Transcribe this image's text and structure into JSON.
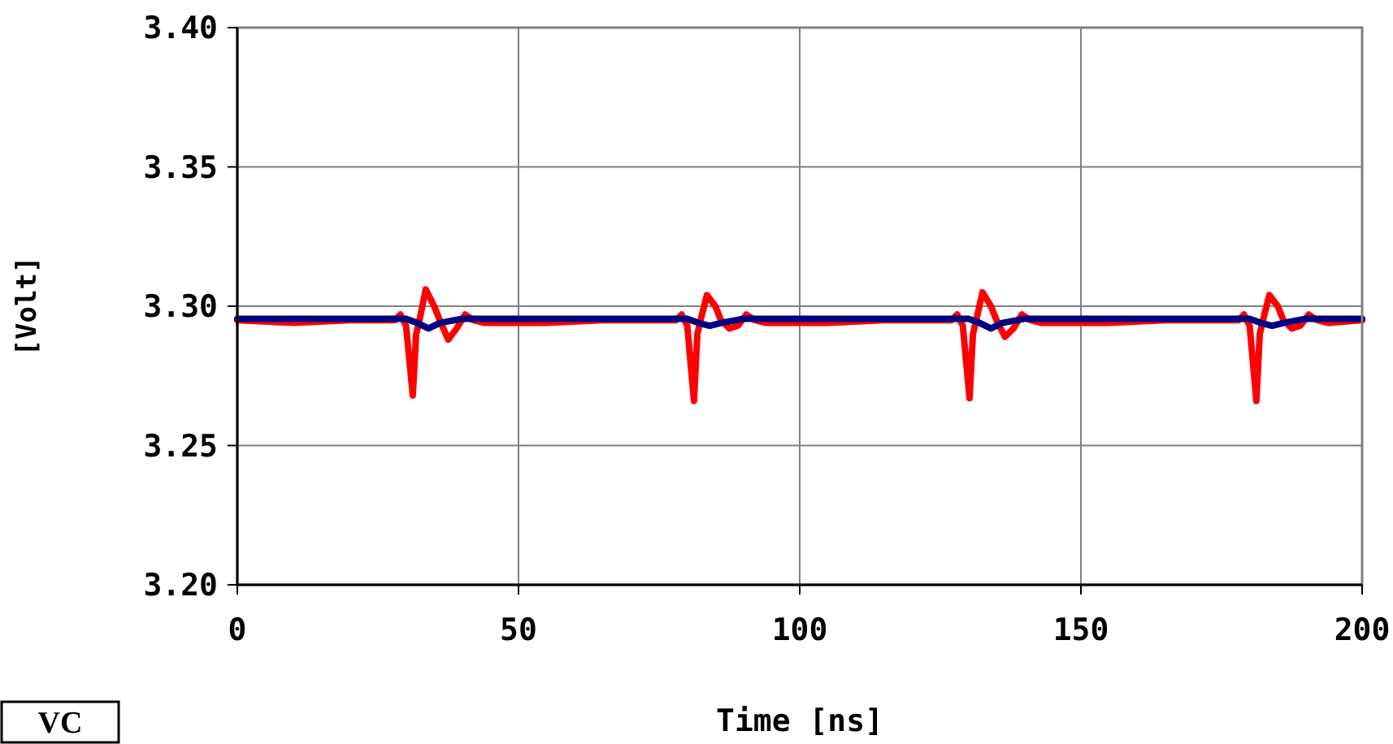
{
  "chart_data": {
    "type": "line",
    "xlabel": "Time [ns]",
    "ylabel": "[Volt]",
    "xlim": [
      0,
      200
    ],
    "ylim": [
      3.2,
      3.4
    ],
    "xticks": [
      0,
      50,
      100,
      150,
      200
    ],
    "yticks": [
      {
        "value": 3.2,
        "label": "3.20"
      },
      {
        "value": 3.25,
        "label": "3.25"
      },
      {
        "value": 3.3,
        "label": "3.30"
      },
      {
        "value": 3.35,
        "label": "3.35"
      },
      {
        "value": 3.4,
        "label": "3.40"
      }
    ],
    "grid": true,
    "marker": "none",
    "line_style": "solid",
    "annotations": [
      "VC"
    ],
    "series": [
      {
        "color": "#ff0000",
        "x": [
          0,
          10,
          20,
          28,
          29,
          30,
          31.2,
          31.8,
          32.5,
          33.5,
          35,
          36,
          37.5,
          39,
          40.5,
          42,
          44,
          55,
          65,
          78,
          79,
          80,
          81.2,
          81.8,
          82.5,
          83.5,
          85,
          86,
          87.5,
          89,
          90.5,
          92,
          94,
          105,
          115,
          127,
          128,
          129,
          130.2,
          130.8,
          131.5,
          132.5,
          134,
          135,
          136.5,
          138,
          139.5,
          141,
          143,
          155,
          165,
          178,
          179,
          180,
          181.2,
          181.8,
          182.5,
          183.5,
          185,
          186,
          187.5,
          189,
          190.5,
          192,
          194,
          200
        ],
        "values": [
          3.295,
          3.294,
          3.295,
          3.295,
          3.297,
          3.293,
          3.268,
          3.29,
          3.296,
          3.306,
          3.3,
          3.295,
          3.288,
          3.292,
          3.297,
          3.295,
          3.294,
          3.294,
          3.295,
          3.295,
          3.297,
          3.293,
          3.266,
          3.29,
          3.296,
          3.304,
          3.3,
          3.295,
          3.292,
          3.293,
          3.297,
          3.295,
          3.294,
          3.294,
          3.295,
          3.295,
          3.297,
          3.293,
          3.267,
          3.29,
          3.296,
          3.305,
          3.3,
          3.295,
          3.289,
          3.292,
          3.297,
          3.295,
          3.294,
          3.294,
          3.295,
          3.295,
          3.297,
          3.293,
          3.266,
          3.29,
          3.296,
          3.304,
          3.3,
          3.295,
          3.292,
          3.293,
          3.297,
          3.295,
          3.294,
          3.295
        ]
      },
      {
        "color": "#000080",
        "x": [
          0,
          30,
          32,
          34,
          36,
          40,
          50,
          80,
          82,
          84,
          86,
          90,
          100,
          130,
          132,
          134,
          136,
          140,
          150,
          180,
          182,
          184,
          186,
          190,
          200
        ],
        "values": [
          3.2955,
          3.2955,
          3.294,
          3.292,
          3.294,
          3.2955,
          3.2955,
          3.2955,
          3.294,
          3.293,
          3.294,
          3.2955,
          3.2955,
          3.2955,
          3.294,
          3.292,
          3.294,
          3.2955,
          3.2955,
          3.2955,
          3.294,
          3.293,
          3.294,
          3.2955,
          3.2955
        ]
      }
    ]
  }
}
